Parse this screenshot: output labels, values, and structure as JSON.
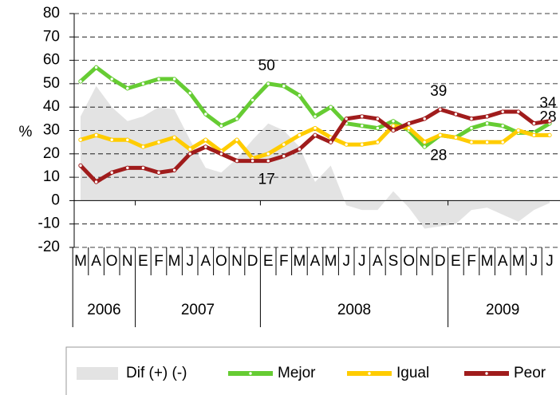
{
  "chart_data": {
    "type": "line",
    "y_label": "%",
    "categories": [
      "M",
      "A",
      "O",
      "N",
      "E",
      "F",
      "M",
      "J",
      "A",
      "O",
      "N",
      "D",
      "E",
      "F",
      "M",
      "A",
      "M",
      "J",
      "J",
      "A",
      "S",
      "O",
      "N",
      "D",
      "E",
      "F",
      "M",
      "A",
      "M",
      "J",
      "J"
    ],
    "years": [
      "2006",
      "2007",
      "2008",
      "2009"
    ],
    "area": {
      "name": "Dif (+) (-)",
      "color": "#e3e3e3",
      "values": [
        36,
        49,
        40,
        34,
        36,
        40,
        39,
        26,
        14,
        12,
        18,
        26,
        33,
        30,
        23,
        8,
        15,
        -2,
        -4,
        -4,
        4,
        -3,
        -12,
        -11,
        -10,
        -4,
        -3,
        -6,
        -9,
        -4,
        -1
      ]
    },
    "series": [
      {
        "name": "Mejor",
        "color": "#66cc33",
        "values": [
          51,
          57,
          52,
          48,
          50,
          52,
          52,
          46,
          37,
          32,
          35,
          43,
          50,
          49,
          45,
          36,
          40,
          33,
          32,
          31,
          34,
          30,
          23,
          28,
          27,
          31,
          33,
          32,
          29,
          29,
          33
        ],
        "value_labels": [
          null,
          null,
          null,
          null,
          null,
          null,
          null,
          null,
          null,
          null,
          null,
          null,
          "50",
          null,
          null,
          null,
          null,
          null,
          null,
          null,
          null,
          null,
          null,
          "28",
          null,
          null,
          null,
          null,
          null,
          null,
          null
        ]
      },
      {
        "name": "Igual",
        "color": "#ffcc00",
        "values": [
          26,
          28,
          26,
          26,
          23,
          25,
          27,
          22,
          26,
          21,
          26,
          18,
          20,
          24,
          28,
          31,
          27,
          24,
          24,
          25,
          32,
          31,
          25,
          28,
          27,
          25,
          25,
          25,
          30,
          28,
          28
        ],
        "value_labels": [
          null,
          null,
          null,
          null,
          null,
          null,
          null,
          null,
          null,
          null,
          null,
          null,
          null,
          null,
          null,
          null,
          null,
          null,
          null,
          null,
          null,
          null,
          null,
          null,
          null,
          null,
          null,
          null,
          null,
          null,
          "28"
        ]
      },
      {
        "name": "Peor",
        "color": "#a01c1c",
        "values": [
          15,
          8,
          12,
          14,
          14,
          12,
          13,
          20,
          23,
          20,
          17,
          17,
          17,
          19,
          22,
          28,
          25,
          35,
          36,
          35,
          30,
          33,
          35,
          39,
          37,
          35,
          36,
          38,
          38,
          33,
          34
        ],
        "value_labels": [
          null,
          null,
          null,
          null,
          null,
          null,
          null,
          null,
          null,
          null,
          null,
          null,
          "17",
          null,
          null,
          null,
          null,
          null,
          null,
          null,
          null,
          null,
          null,
          "39",
          null,
          null,
          null,
          null,
          null,
          null,
          "34"
        ]
      }
    ],
    "ylim": [
      -20,
      80
    ],
    "yticks": [
      -20,
      -10,
      0,
      10,
      20,
      30,
      40,
      50,
      60,
      70,
      80
    ],
    "grid": true
  }
}
